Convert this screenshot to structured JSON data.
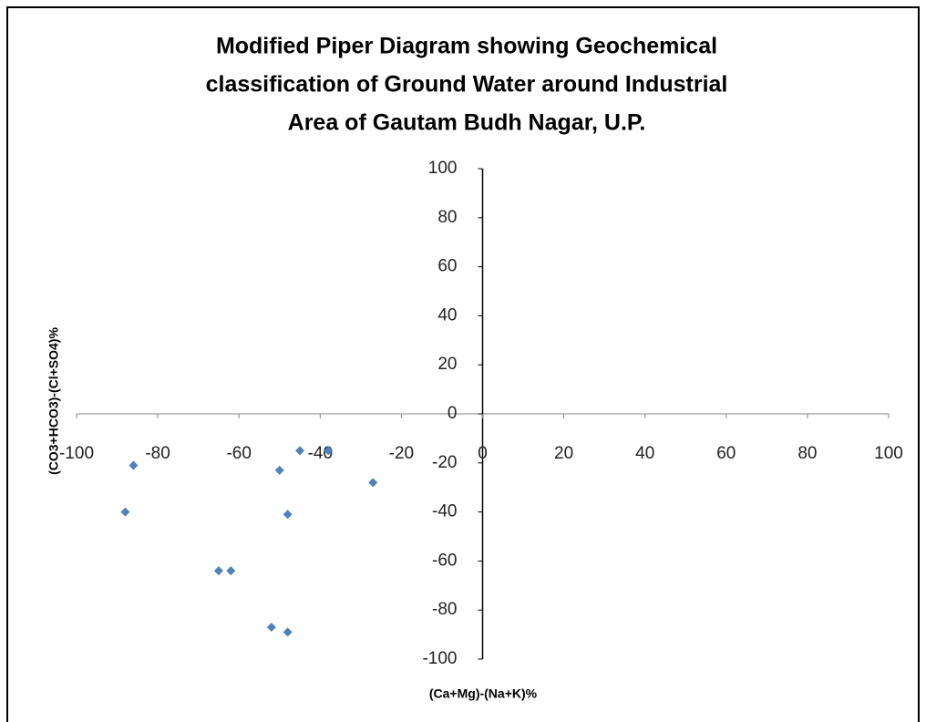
{
  "chart_data": {
    "type": "scatter",
    "title": [
      "Modified Piper Diagram showing Geochemical",
      "classification of Ground Water around Industrial",
      "Area of Gautam Budh Nagar, U.P."
    ],
    "x_label": "(Ca+Mg)-(Na+K)%",
    "y_label": "(CO3+HCO3)-(Cl+SO4)%",
    "series": [
      {
        "color": "#4f81bd",
        "x": [
          -86,
          -88,
          -65,
          -62,
          -50,
          -45,
          -38,
          -27,
          -48,
          -52,
          -48
        ],
        "values": [
          -21,
          -40,
          -64,
          -64,
          -23,
          -15,
          -15,
          -28,
          -41,
          -87,
          -89
        ]
      }
    ],
    "xlim": [
      -100,
      100
    ],
    "ylim": [
      -100,
      100
    ],
    "xticks": [
      -100,
      -80,
      -60,
      -40,
      -20,
      0,
      20,
      40,
      60,
      80,
      100
    ],
    "yticks": [
      -100,
      -80,
      -60,
      -40,
      -20,
      0,
      20,
      40,
      60,
      80,
      100
    ]
  }
}
